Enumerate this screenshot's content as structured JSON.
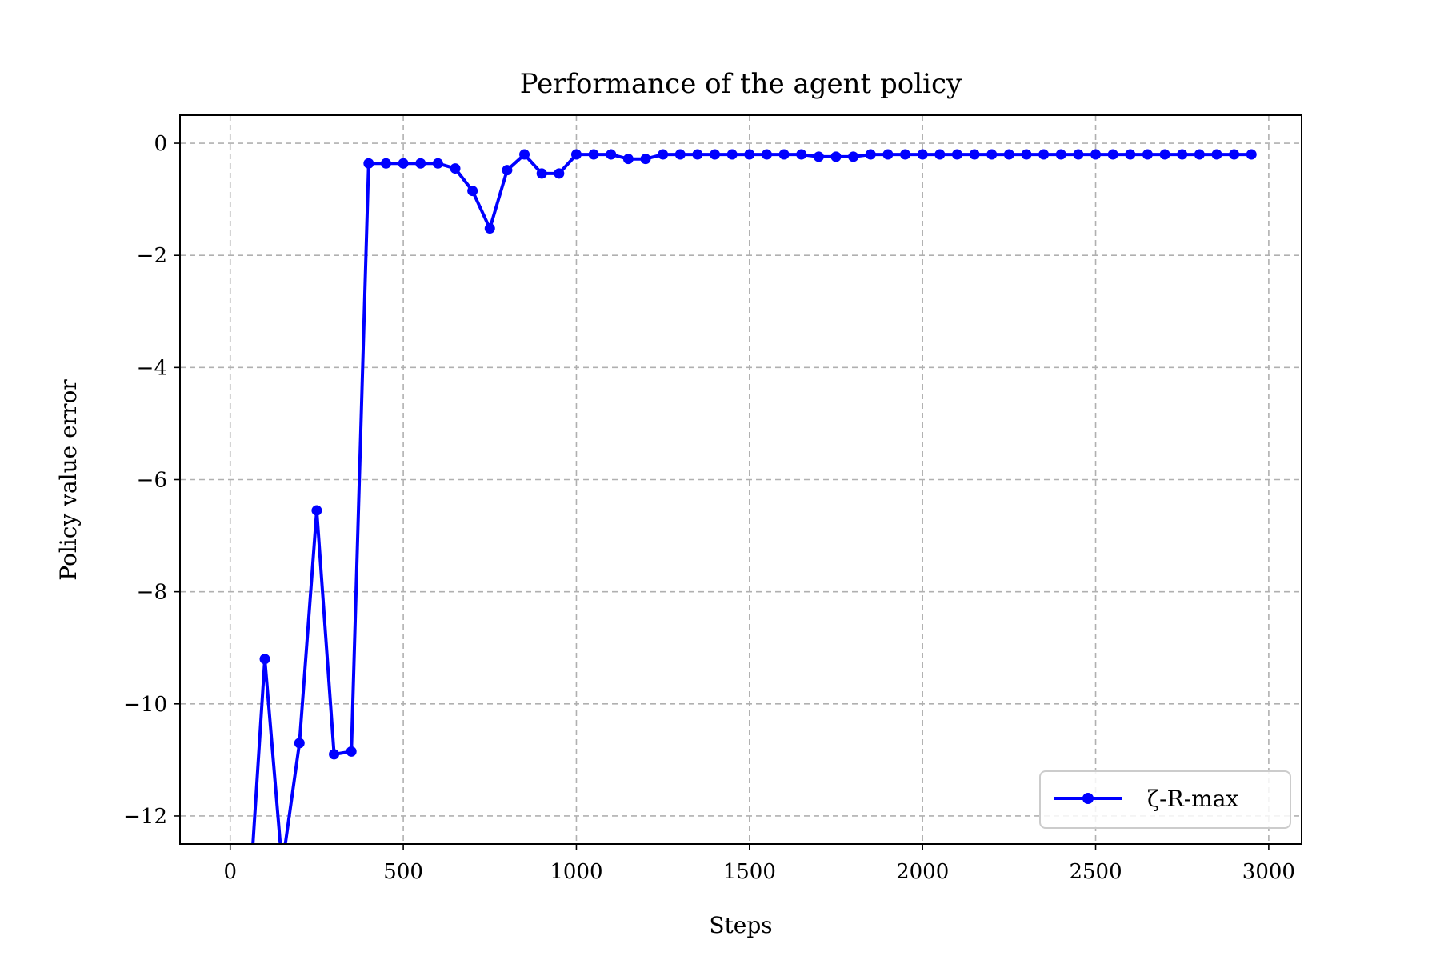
{
  "chart_data": {
    "type": "line",
    "title": "Performance of the agent policy",
    "xlabel": "Steps",
    "ylabel": "Policy value error",
    "xlim": [
      -145,
      3095
    ],
    "ylim": [
      -12.5,
      0.5
    ],
    "xticks": [
      0,
      500,
      1000,
      1500,
      2000,
      2500,
      3000
    ],
    "xtick_labels": [
      "0",
      "500",
      "1000",
      "1500",
      "2000",
      "2500",
      "3000"
    ],
    "yticks": [
      0,
      -2,
      -4,
      -6,
      -8,
      -10,
      -12
    ],
    "ytick_labels": [
      "0",
      "−2",
      "−4",
      "−6",
      "−8",
      "−10",
      "−12"
    ],
    "grid": true,
    "legend": {
      "position": "lower-right"
    },
    "series": [
      {
        "name": "ζ-R-max",
        "color": "#0000ff",
        "marker": "circle",
        "x": [
          50,
          100,
          150,
          200,
          250,
          300,
          350,
          400,
          450,
          500,
          550,
          600,
          650,
          700,
          750,
          800,
          850,
          900,
          950,
          1000,
          1050,
          1100,
          1150,
          1200,
          1250,
          1300,
          1350,
          1400,
          1450,
          1500,
          1550,
          1600,
          1650,
          1700,
          1750,
          1800,
          1850,
          1900,
          1950,
          2000,
          2050,
          2100,
          2150,
          2200,
          2250,
          2300,
          2350,
          2400,
          2450,
          2500,
          2550,
          2600,
          2650,
          2700,
          2750,
          2800,
          2850,
          2900,
          2950
        ],
        "y": [
          -14.0,
          -9.2,
          -12.9,
          -10.7,
          -6.55,
          -10.9,
          -10.85,
          -0.36,
          -0.36,
          -0.36,
          -0.36,
          -0.36,
          -0.45,
          -0.85,
          -1.52,
          -0.48,
          -0.2,
          -0.54,
          -0.54,
          -0.2,
          -0.2,
          -0.2,
          -0.28,
          -0.28,
          -0.2,
          -0.2,
          -0.2,
          -0.2,
          -0.2,
          -0.2,
          -0.2,
          -0.2,
          -0.2,
          -0.24,
          -0.24,
          -0.24,
          -0.2,
          -0.2,
          -0.2,
          -0.2,
          -0.2,
          -0.2,
          -0.2,
          -0.2,
          -0.2,
          -0.2,
          -0.2,
          -0.2,
          -0.2,
          -0.2,
          -0.2,
          -0.2,
          -0.2,
          -0.2,
          -0.2,
          -0.2,
          -0.2,
          -0.2,
          -0.2
        ]
      }
    ]
  }
}
